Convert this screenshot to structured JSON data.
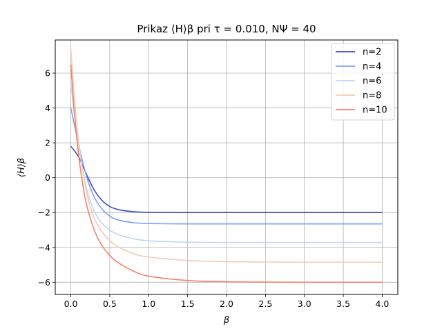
{
  "chart_data": {
    "type": "line",
    "title": "Prikaz ⟨H⟩β pri τ = 0.010, NΨ = 40",
    "xlabel": "β",
    "ylabel": "⟨H⟩β",
    "xlim": [
      -0.2,
      4.2
    ],
    "ylim": [
      -6.7,
      7.9
    ],
    "x_ticks": [
      0.0,
      0.5,
      1.0,
      1.5,
      2.0,
      2.5,
      3.0,
      3.5,
      4.0
    ],
    "x_tick_labels": [
      "0.0",
      "0.5",
      "1.0",
      "1.5",
      "2.0",
      "2.5",
      "3.0",
      "3.5",
      "4.0"
    ],
    "y_ticks": [
      -6,
      -4,
      -2,
      0,
      2,
      4,
      6
    ],
    "y_tick_labels": [
      "−6",
      "−4",
      "−2",
      "0",
      "2",
      "4",
      "6"
    ],
    "grid": true,
    "legend_position": "top-right",
    "series": [
      {
        "name": "n=2",
        "color": "#3b4cc0",
        "x": [
          0,
          0.1,
          0.2,
          0.3,
          0.4,
          0.5,
          0.6,
          0.8,
          1.0,
          1.5,
          2.0,
          3.0,
          4.0
        ],
        "y": [
          1.8,
          1.2,
          0.2,
          -0.7,
          -1.3,
          -1.65,
          -1.82,
          -1.95,
          -1.99,
          -2.0,
          -2.0,
          -2.0,
          -2.0
        ]
      },
      {
        "name": "n=4",
        "color": "#7b9ff9",
        "x": [
          0,
          0.1,
          0.2,
          0.3,
          0.4,
          0.5,
          0.6,
          0.8,
          1.0,
          1.5,
          2.0,
          3.0,
          4.0
        ],
        "y": [
          4.0,
          1.9,
          0.1,
          -1.1,
          -1.8,
          -2.2,
          -2.42,
          -2.58,
          -2.63,
          -2.65,
          -2.65,
          -2.65,
          -2.65
        ]
      },
      {
        "name": "n=6",
        "color": "#c0d4f5",
        "x": [
          0,
          0.05,
          0.1,
          0.2,
          0.3,
          0.4,
          0.5,
          0.6,
          0.8,
          1.0,
          1.5,
          2.0,
          3.0,
          4.0
        ],
        "y": [
          5.5,
          3.4,
          1.8,
          -0.6,
          -1.9,
          -2.6,
          -3.0,
          -3.25,
          -3.5,
          -3.62,
          -3.7,
          -3.72,
          -3.72,
          -3.72
        ]
      },
      {
        "name": "n=8",
        "color": "#f2cbb7",
        "x": [
          0,
          0.05,
          0.1,
          0.2,
          0.3,
          0.4,
          0.5,
          0.6,
          0.8,
          1.0,
          1.5,
          2.0,
          2.5,
          3.0,
          4.0
        ],
        "y": [
          7.4,
          4.4,
          2.1,
          -0.8,
          -2.3,
          -3.1,
          -3.6,
          -3.95,
          -4.35,
          -4.55,
          -4.75,
          -4.82,
          -4.84,
          -4.85,
          -4.85
        ]
      },
      {
        "name": "n=10",
        "color": "#ee8468",
        "x": [
          0,
          0.05,
          0.1,
          0.15,
          0.2,
          0.3,
          0.4,
          0.5,
          0.6,
          0.8,
          1.0,
          1.5,
          2.0,
          2.5,
          3.0,
          4.0
        ],
        "y": [
          6.5,
          3.5,
          1.3,
          -0.3,
          -1.5,
          -3.0,
          -3.9,
          -4.45,
          -4.85,
          -5.35,
          -5.65,
          -5.9,
          -5.97,
          -5.99,
          -6.0,
          -6.0
        ]
      }
    ]
  }
}
